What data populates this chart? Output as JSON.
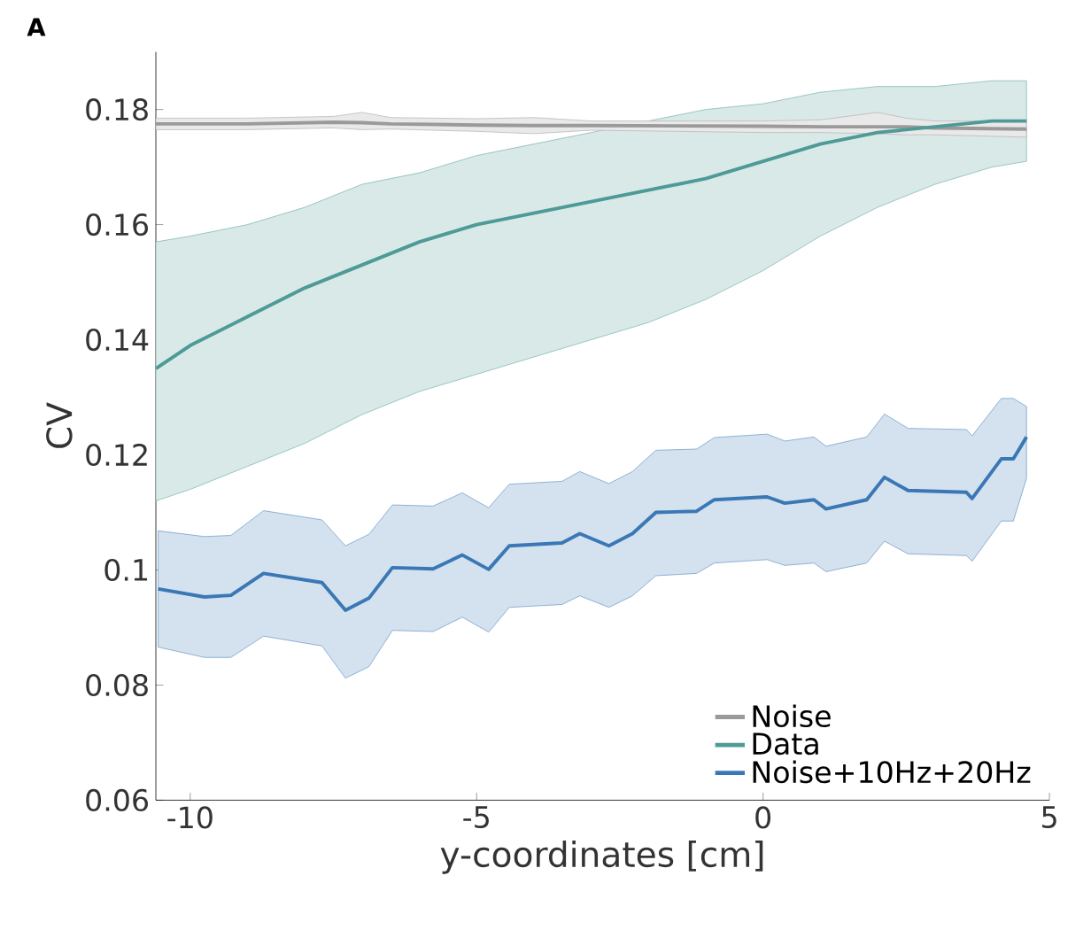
{
  "chart_data": {
    "type": "line",
    "xlabel": "y-coordinates [cm]",
    "ylabel": "CV",
    "annotations": [
      "A"
    ],
    "xlim": [
      -10.6,
      5
    ],
    "ylim": [
      0.06,
      0.19
    ],
    "xticks": [
      -10,
      -5,
      0,
      5
    ],
    "yticks": [
      0.06,
      0.08,
      0.1,
      0.12,
      0.14,
      0.16,
      0.18
    ],
    "legend": "bottom right",
    "grid": false,
    "series": [
      {
        "name": "Noise",
        "color": "#9a9a9a",
        "x": [
          -10.6,
          -9,
          -7.5,
          -7,
          -6.5,
          -5,
          -4,
          -3,
          0,
          1,
          2,
          2.5,
          3,
          4.6
        ],
        "values": [
          0.1775,
          0.1775,
          0.1778,
          0.1777,
          0.1775,
          0.1773,
          0.1772,
          0.1772,
          0.1771,
          0.177,
          0.177,
          0.177,
          0.1768,
          0.1766
        ],
        "lower": [
          0.1765,
          0.1765,
          0.1768,
          0.1765,
          0.1766,
          0.1762,
          0.1758,
          0.1764,
          0.176,
          0.176,
          0.1758,
          0.1756,
          0.1756,
          0.1752
        ],
        "upper": [
          0.1785,
          0.1785,
          0.1788,
          0.1795,
          0.1786,
          0.1784,
          0.1786,
          0.178,
          0.178,
          0.1782,
          0.1795,
          0.1785,
          0.178,
          0.178
        ]
      },
      {
        "name": "Data",
        "color": "#4e9a96",
        "x": [
          -10.6,
          -10,
          -9,
          -8,
          -7,
          -6,
          -5,
          -4,
          -3,
          -2,
          -1,
          0,
          1,
          2,
          3,
          4,
          4.6
        ],
        "values": [
          0.135,
          0.139,
          0.144,
          0.149,
          0.153,
          0.157,
          0.16,
          0.162,
          0.164,
          0.166,
          0.168,
          0.171,
          0.174,
          0.176,
          0.177,
          0.178,
          0.178
        ],
        "lower": [
          0.112,
          0.114,
          0.118,
          0.122,
          0.127,
          0.131,
          0.134,
          0.137,
          0.14,
          0.143,
          0.147,
          0.152,
          0.158,
          0.163,
          0.167,
          0.17,
          0.171
        ],
        "upper": [
          0.157,
          0.158,
          0.16,
          0.163,
          0.167,
          0.169,
          0.172,
          0.174,
          0.176,
          0.178,
          0.18,
          0.181,
          0.183,
          0.184,
          0.184,
          0.185,
          0.185
        ]
      },
      {
        "name": "Noise+10Hz+20Hz",
        "color": "#3a78b5",
        "x": [
          -10.56,
          -9.75,
          -9.29,
          -8.72,
          -7.7,
          -7.29,
          -6.88,
          -6.47,
          -5.76,
          -5.25,
          -4.79,
          -4.43,
          -3.51,
          -3.2,
          -2.69,
          -2.28,
          -1.87,
          -1.16,
          -0.85,
          0.07,
          0.38,
          0.89,
          1.1,
          1.81,
          2.12,
          2.53,
          3.55,
          3.65,
          4.16,
          4.37,
          4.6
        ],
        "values": [
          0.0967,
          0.0953,
          0.0956,
          0.0994,
          0.0978,
          0.093,
          0.0951,
          0.1004,
          0.1002,
          0.1026,
          0.1001,
          0.1042,
          0.1047,
          0.1063,
          0.1042,
          0.1063,
          0.11,
          0.1102,
          0.1122,
          0.1127,
          0.1116,
          0.1122,
          0.1106,
          0.1122,
          0.1161,
          0.1138,
          0.1135,
          0.1124,
          0.1193,
          0.1193,
          0.1231
        ],
        "lower": [
          0.0866,
          0.0848,
          0.0848,
          0.0885,
          0.0868,
          0.0812,
          0.0832,
          0.0895,
          0.0893,
          0.0918,
          0.0892,
          0.0935,
          0.094,
          0.0955,
          0.0935,
          0.0955,
          0.099,
          0.0994,
          0.1012,
          0.1018,
          0.1008,
          0.1012,
          0.0997,
          0.1012,
          0.105,
          0.1028,
          0.1025,
          0.1015,
          0.1085,
          0.1085,
          0.1159
        ],
        "upper": [
          0.1068,
          0.1058,
          0.106,
          0.1103,
          0.1087,
          0.1042,
          0.1062,
          0.1113,
          0.1111,
          0.1134,
          0.1108,
          0.1149,
          0.1154,
          0.1171,
          0.115,
          0.1171,
          0.1208,
          0.121,
          0.123,
          0.1236,
          0.1224,
          0.1231,
          0.1215,
          0.1231,
          0.1271,
          0.1246,
          0.1244,
          0.1233,
          0.1298,
          0.1298,
          0.1284
        ]
      }
    ]
  }
}
